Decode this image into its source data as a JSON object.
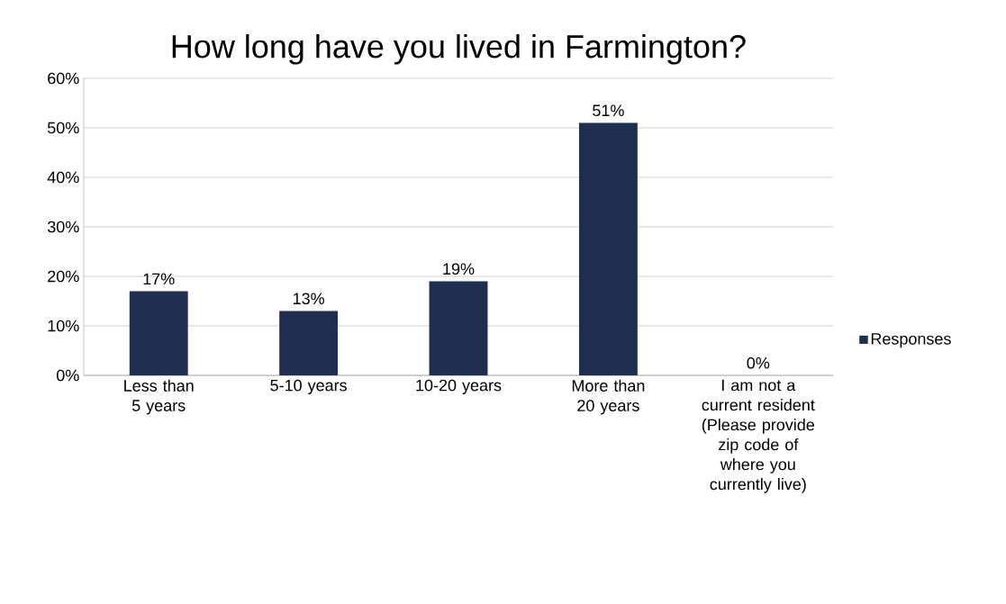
{
  "chart_data": {
    "type": "bar",
    "title": "How long have you lived in Farmington?",
    "categories": [
      "Less than 5 years",
      "5-10 years",
      "10-20 years",
      "More than 20 years",
      "I am not a current resident (Please provide zip code of where you currently live)"
    ],
    "series": [
      {
        "name": "Responses",
        "color": "#1f2d4e",
        "values": [
          17,
          13,
          19,
          51,
          0
        ],
        "value_labels": [
          "17%",
          "13%",
          "19%",
          "51%",
          "0%"
        ]
      }
    ],
    "ylim": [
      0,
      60
    ],
    "yticks": [
      {
        "value": 0,
        "label": "0%"
      },
      {
        "value": 10,
        "label": "10%"
      },
      {
        "value": 20,
        "label": "20%"
      },
      {
        "value": 30,
        "label": "30%"
      },
      {
        "value": 40,
        "label": "40%"
      },
      {
        "value": 50,
        "label": "50%"
      },
      {
        "value": 60,
        "label": "60%"
      }
    ],
    "grid": "y",
    "legend": "right"
  }
}
